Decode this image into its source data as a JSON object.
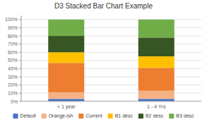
{
  "chart_data": {
    "type": "bar",
    "stacked": true,
    "title": "D3 Stacked Bar Chart Example",
    "categories": [
      "< 1 year",
      "1 - 4 Yrs"
    ],
    "series": [
      {
        "name": "Default",
        "color": "#4472c4",
        "values": [
          0.03,
          0.03
        ]
      },
      {
        "name": "Orange-ish",
        "color": "#f4b183",
        "values": [
          0.08,
          0.1
        ]
      },
      {
        "name": "Current",
        "color": "#ed7d31",
        "values": [
          0.36,
          0.28
        ]
      },
      {
        "name": "B1 desc",
        "color": "#ffc000",
        "values": [
          0.13,
          0.14
        ]
      },
      {
        "name": "B2 desc",
        "color": "#375623",
        "values": [
          0.2,
          0.23
        ]
      },
      {
        "name": "B3 desc",
        "color": "#70ad47",
        "values": [
          0.2,
          0.22
        ]
      }
    ],
    "ylim": [
      0,
      1.05
    ],
    "yticks": [
      {
        "value": 0,
        "label": "0%"
      },
      {
        "value": 0.1,
        "label": "10%"
      },
      {
        "value": 0.2,
        "label": "20%"
      },
      {
        "value": 0.3,
        "label": "30%"
      },
      {
        "value": 0.4,
        "label": "40%"
      },
      {
        "value": 0.5,
        "label": "50%"
      },
      {
        "value": 0.6,
        "label": "60%"
      },
      {
        "value": 0.7,
        "label": "70%"
      },
      {
        "value": 0.8,
        "label": "80%"
      },
      {
        "value": 0.9,
        "label": "90%"
      },
      {
        "value": 1.0,
        "label": "100%"
      }
    ],
    "grid": true,
    "legend": "bottom"
  }
}
